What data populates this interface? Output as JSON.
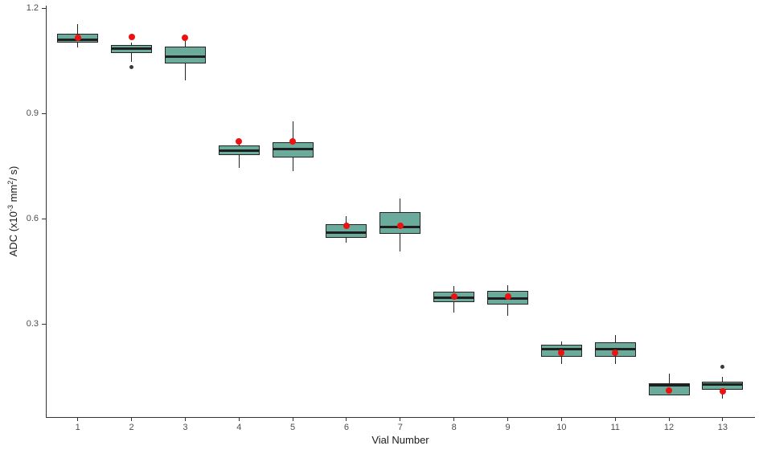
{
  "chart_data": {
    "type": "box",
    "title": "",
    "xlabel": "Vial Number",
    "ylabel": "ADC (x10-3 mm2/ s)",
    "ylabel_parts": [
      "ADC (x10",
      "-3",
      " mm",
      "2",
      "/ s)"
    ],
    "ylim": [
      0.034,
      1.209
    ],
    "grid": false,
    "legend": "none",
    "yticks": [
      {
        "value": 0.3,
        "label": "0.3"
      },
      {
        "value": 0.6,
        "label": "0.6"
      },
      {
        "value": 0.9,
        "label": "0.9"
      },
      {
        "value": 1.2,
        "label": "1.2"
      }
    ],
    "categories": [
      "1",
      "2",
      "3",
      "4",
      "5",
      "6",
      "7",
      "8",
      "9",
      "10",
      "11",
      "12",
      "13"
    ],
    "boxes": [
      {
        "vial": "1",
        "whisker_low": 1.089,
        "q1": 1.104,
        "median": 1.112,
        "q3": 1.128,
        "whisker_high": 1.156,
        "mean": 1.118,
        "outliers": []
      },
      {
        "vial": "2",
        "whisker_low": 1.049,
        "q1": 1.073,
        "median": 1.086,
        "q3": 1.096,
        "whisker_high": 1.103,
        "mean": 1.119,
        "outliers": [
          1.034
        ]
      },
      {
        "vial": "3",
        "whisker_low": 0.995,
        "q1": 1.043,
        "median": 1.064,
        "q3": 1.092,
        "whisker_high": 1.11,
        "mean": 1.118,
        "outliers": []
      },
      {
        "vial": "4",
        "whisker_low": 0.747,
        "q1": 0.782,
        "median": 0.795,
        "q3": 0.81,
        "whisker_high": 0.83,
        "mean": 0.823,
        "outliers": []
      },
      {
        "vial": "5",
        "whisker_low": 0.737,
        "q1": 0.776,
        "median": 0.801,
        "q3": 0.82,
        "whisker_high": 0.879,
        "mean": 0.821,
        "outliers": []
      },
      {
        "vial": "6",
        "whisker_low": 0.534,
        "q1": 0.548,
        "median": 0.563,
        "q3": 0.585,
        "whisker_high": 0.608,
        "mean": 0.582,
        "outliers": []
      },
      {
        "vial": "7",
        "whisker_low": 0.509,
        "q1": 0.559,
        "median": 0.579,
        "q3": 0.62,
        "whisker_high": 0.66,
        "mean": 0.582,
        "outliers": []
      },
      {
        "vial": "8",
        "whisker_low": 0.335,
        "q1": 0.363,
        "median": 0.377,
        "q3": 0.394,
        "whisker_high": 0.41,
        "mean": 0.38,
        "outliers": []
      },
      {
        "vial": "9",
        "whisker_low": 0.325,
        "q1": 0.356,
        "median": 0.375,
        "q3": 0.397,
        "whisker_high": 0.412,
        "mean": 0.379,
        "outliers": []
      },
      {
        "vial": "10",
        "whisker_low": 0.188,
        "q1": 0.207,
        "median": 0.23,
        "q3": 0.242,
        "whisker_high": 0.251,
        "mean": 0.22,
        "outliers": []
      },
      {
        "vial": "11",
        "whisker_low": 0.188,
        "q1": 0.209,
        "median": 0.23,
        "q3": 0.25,
        "whisker_high": 0.271,
        "mean": 0.219,
        "outliers": []
      },
      {
        "vial": "12",
        "whisker_low": 0.098,
        "q1": 0.098,
        "median": 0.126,
        "q3": 0.133,
        "whisker_high": 0.161,
        "mean": 0.111,
        "outliers": []
      },
      {
        "vial": "13",
        "whisker_low": 0.089,
        "q1": 0.115,
        "median": 0.129,
        "q3": 0.137,
        "whisker_high": 0.15,
        "mean": 0.11,
        "outliers": [
          0.18
        ]
      }
    ],
    "colors": {
      "box_fill": "#6BAB9B",
      "box_border": "#222222",
      "median": "#1f1f1f",
      "mean_point": "#EE1111",
      "outlier_point": "#3a3a3a",
      "axis_line": "#333333",
      "tick_text": "#4d4d4d",
      "title_text": "#1a1a1a",
      "background": "#ffffff"
    }
  }
}
